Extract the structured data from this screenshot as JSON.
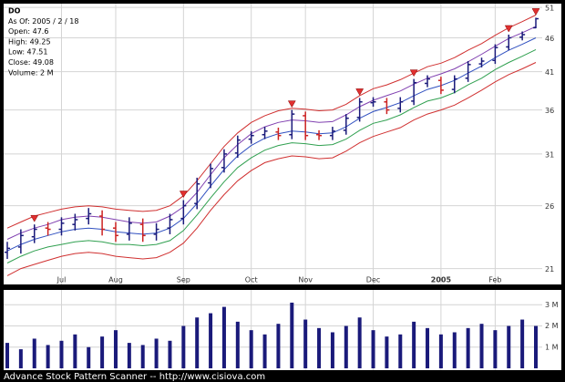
{
  "chart_data": [
    {
      "type": "ohlc",
      "annotations": [
        "DO",
        "As Of: 2005 / 2 / 18",
        "Open: 47.6",
        "High: 49.25",
        "Low: 47.51",
        "Close: 49.08",
        "Volume: 2 M"
      ],
      "categories": [
        null,
        null,
        null,
        null,
        "Jul",
        null,
        null,
        null,
        "Aug",
        null,
        null,
        null,
        null,
        "Sep",
        null,
        null,
        null,
        null,
        "Oct",
        null,
        null,
        null,
        "Nov",
        null,
        null,
        null,
        null,
        "Dec",
        null,
        null,
        null,
        null,
        "2005",
        null,
        null,
        null,
        "Feb",
        null,
        null,
        null
      ],
      "open": [
        22.2,
        22.6,
        23.4,
        24.1,
        24,
        24.4,
        24.9,
        25.1,
        24.1,
        23.6,
        24.4,
        23.6,
        24.1,
        24.9,
        26.2,
        28.1,
        29.6,
        31.1,
        32.6,
        33.1,
        33.4,
        33.1,
        35.3,
        33.1,
        33,
        33.6,
        35.1,
        36.9,
        37,
        36.2,
        37.1,
        39.4,
        39.8,
        38.6,
        40.1,
        42.1,
        42.6,
        44.6,
        46.1,
        47.6
      ],
      "high": [
        23,
        24,
        24.4,
        24.6,
        25,
        25.3,
        25.8,
        25.6,
        24.6,
        25,
        24.9,
        24.5,
        25.3,
        26.5,
        28.6,
        30,
        31.5,
        33,
        33.5,
        34,
        33.9,
        36,
        35.8,
        33.6,
        34,
        35.5,
        37.5,
        37.6,
        37.5,
        37.6,
        40,
        40.5,
        40.3,
        40.5,
        42.5,
        43,
        45,
        46.5,
        47,
        49.25
      ],
      "low": [
        21.7,
        22.1,
        22.9,
        23.5,
        23.5,
        23.9,
        24.4,
        23.5,
        23,
        23.1,
        23,
        23.1,
        23.6,
        24.4,
        25.7,
        27.6,
        29.1,
        30.6,
        32.1,
        32.6,
        32.5,
        32.6,
        32.5,
        32.5,
        32.5,
        33.1,
        34.6,
        36.4,
        35.5,
        35.7,
        36.6,
        38.9,
        38,
        38.1,
        39.6,
        41.6,
        42.1,
        44.1,
        45.6,
        47.51
      ],
      "close": [
        22.5,
        23.5,
        24,
        24,
        24.5,
        24.8,
        25.3,
        24,
        23.5,
        24.5,
        23.5,
        24,
        24.8,
        26,
        28,
        29.5,
        31,
        32.5,
        33,
        33.5,
        33,
        35.5,
        33,
        33,
        33.5,
        35,
        37,
        37,
        36,
        37,
        39.5,
        40,
        38.5,
        40,
        42,
        42.5,
        44.5,
        46,
        46.5,
        49.08
      ],
      "up_color": "#1a1a7a",
      "down_color": "#cc2222",
      "bands": [
        {
          "color": "#d03030",
          "values": [
            24.1,
            24.6,
            25.1,
            25.4,
            25.7,
            25.9,
            26.0,
            25.9,
            25.7,
            25.6,
            25.5,
            25.6,
            26.0,
            26.9,
            28.3,
            30.0,
            31.8,
            33.3,
            34.5,
            35.3,
            35.9,
            36.2,
            36.1,
            35.9,
            36.0,
            36.7,
            37.8,
            38.7,
            39.2,
            39.9,
            40.8,
            41.7,
            42.2,
            43.0,
            44.1,
            45.1,
            46.4,
            47.6,
            48.6,
            49.7
          ]
        },
        {
          "color": "#8040b0",
          "values": [
            23.2,
            23.7,
            24.1,
            24.4,
            24.8,
            25.0,
            25.1,
            25.0,
            24.8,
            24.6,
            24.5,
            24.6,
            25.1,
            25.9,
            27.2,
            28.9,
            30.6,
            32.0,
            33.2,
            34.0,
            34.5,
            34.8,
            34.7,
            34.5,
            34.6,
            35.4,
            36.4,
            37.2,
            37.8,
            38.4,
            39.3,
            40.1,
            40.7,
            41.4,
            42.4,
            43.5,
            44.7,
            45.9,
            46.8,
            47.8
          ]
        },
        {
          "color": "#3050c0",
          "values": [
            22.3,
            22.8,
            23.2,
            23.5,
            23.8,
            24.0,
            24.1,
            24.0,
            23.8,
            23.7,
            23.6,
            23.7,
            24.1,
            24.9,
            26.2,
            27.8,
            29.4,
            30.8,
            31.9,
            32.7,
            33.2,
            33.5,
            33.4,
            33.2,
            33.3,
            34.0,
            35.0,
            35.8,
            36.3,
            36.9,
            37.8,
            38.6,
            39.1,
            39.8,
            40.8,
            41.8,
            43.0,
            44.1,
            45.0,
            46.0
          ]
        },
        {
          "color": "#30a050",
          "values": [
            21.4,
            21.9,
            22.3,
            22.6,
            22.8,
            23.0,
            23.1,
            23.0,
            22.8,
            22.8,
            22.7,
            22.8,
            23.1,
            23.9,
            25.2,
            26.7,
            28.2,
            29.6,
            30.6,
            31.4,
            31.9,
            32.2,
            32.1,
            31.9,
            32.0,
            32.6,
            33.6,
            34.4,
            34.8,
            35.4,
            36.3,
            37.1,
            37.5,
            38.2,
            39.2,
            40.1,
            41.3,
            42.3,
            43.2,
            44.2
          ]
        },
        {
          "color": "#d03030",
          "values": [
            20.5,
            21.0,
            21.3,
            21.6,
            21.9,
            22.1,
            22.2,
            22.1,
            21.9,
            21.8,
            21.7,
            21.8,
            22.2,
            22.9,
            24.1,
            25.6,
            27.0,
            28.3,
            29.3,
            30.1,
            30.5,
            30.8,
            30.7,
            30.5,
            30.6,
            31.3,
            32.2,
            32.9,
            33.4,
            33.9,
            34.8,
            35.5,
            36.0,
            36.6,
            37.5,
            38.5,
            39.6,
            40.6,
            41.4,
            42.3
          ]
        }
      ],
      "signals": [
        2,
        13,
        21,
        26,
        30,
        37,
        39
      ],
      "signal_color": "#e03030",
      "log": true,
      "ylim": [
        19.9,
        51.5
      ],
      "yticks": [
        21,
        26,
        31,
        36,
        41,
        46,
        51
      ],
      "grid": true
    },
    {
      "type": "bar",
      "values": [
        1.2,
        0.9,
        1.4,
        1.1,
        1.3,
        1.6,
        1.0,
        1.5,
        1.8,
        1.2,
        1.1,
        1.4,
        1.3,
        2.0,
        2.4,
        2.6,
        2.9,
        2.2,
        1.8,
        1.6,
        2.1,
        3.1,
        2.3,
        1.9,
        1.7,
        2.0,
        2.4,
        1.8,
        1.5,
        1.6,
        2.2,
        1.9,
        1.6,
        1.7,
        1.9,
        2.1,
        1.8,
        2.0,
        2.3,
        2.0
      ],
      "color": "#1a1a7a",
      "ylim": [
        0,
        3.7
      ],
      "yticks": [
        {
          "value": 1,
          "label": "1 M"
        },
        {
          "value": 2,
          "label": "2 M"
        },
        {
          "value": 3,
          "label": "3 M"
        }
      ],
      "grid": true
    }
  ],
  "footer": "Advance Stock Pattern Scanner -- http://www.cisiova.com"
}
